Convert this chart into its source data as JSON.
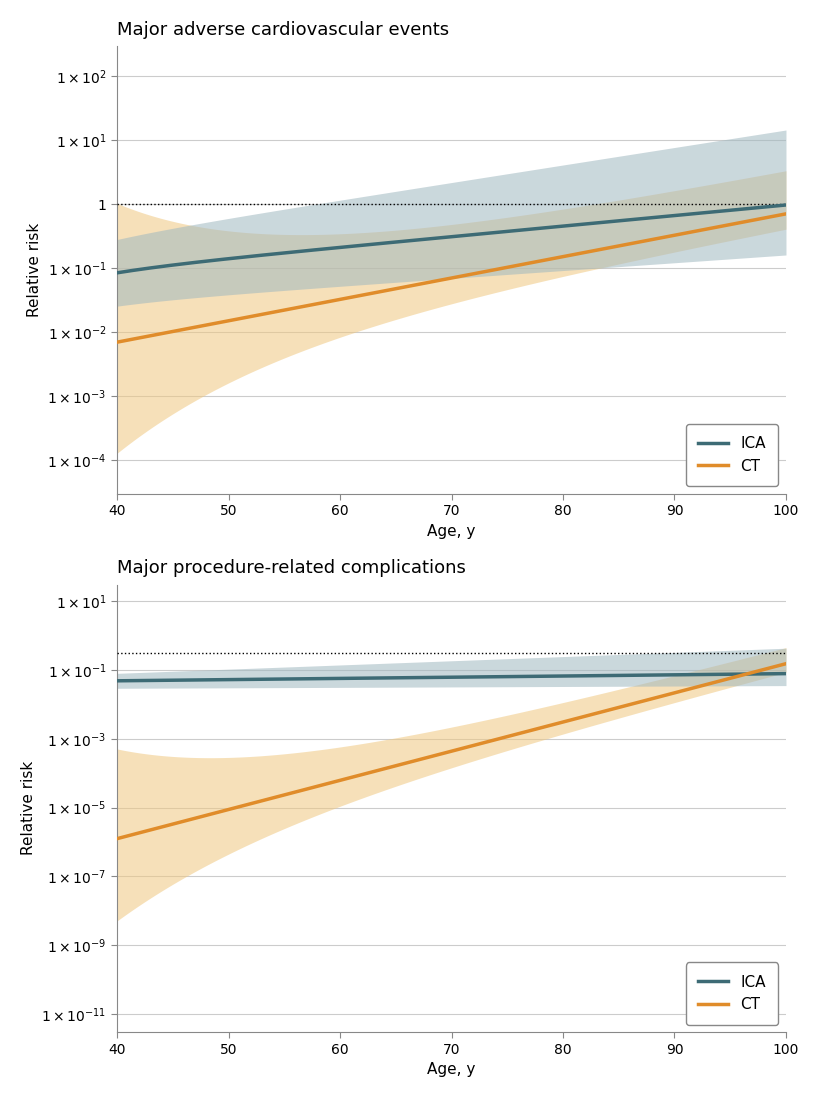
{
  "panel1_title": "Major adverse cardiovascular events",
  "panel2_title": "Major procedure-related complications",
  "xlabel": "Age, y",
  "ylabel": "Relative risk",
  "x_ticks": [
    40,
    50,
    60,
    70,
    80,
    90,
    100
  ],
  "x_min": 40,
  "x_max": 100,
  "panel1_ylim": [
    3e-05,
    300.0
  ],
  "panel1_yticks": [
    0.0001,
    0.001,
    0.01,
    0.1,
    1,
    10.0,
    100.0
  ],
  "panel2_ylim": [
    3e-12,
    30.0
  ],
  "panel2_yticks": [
    1e-11,
    1e-09,
    1e-07,
    1e-05,
    0.001,
    0.1,
    10.0
  ],
  "panel1_hline": 1.0,
  "panel2_hline": 0.3,
  "ica_color": "#3d6b75",
  "ct_color": "#e08c2a",
  "ica_ci_color": "#a0b8c0",
  "ct_ci_color": "#f0c880",
  "ica_ci_alpha": 0.55,
  "ct_ci_alpha": 0.55,
  "bg_color": "#ffffff",
  "grid_color": "#cccccc",
  "title_fontsize": 13,
  "label_fontsize": 11,
  "tick_fontsize": 10,
  "legend_fontsize": 11,
  "line_width": 2.5
}
